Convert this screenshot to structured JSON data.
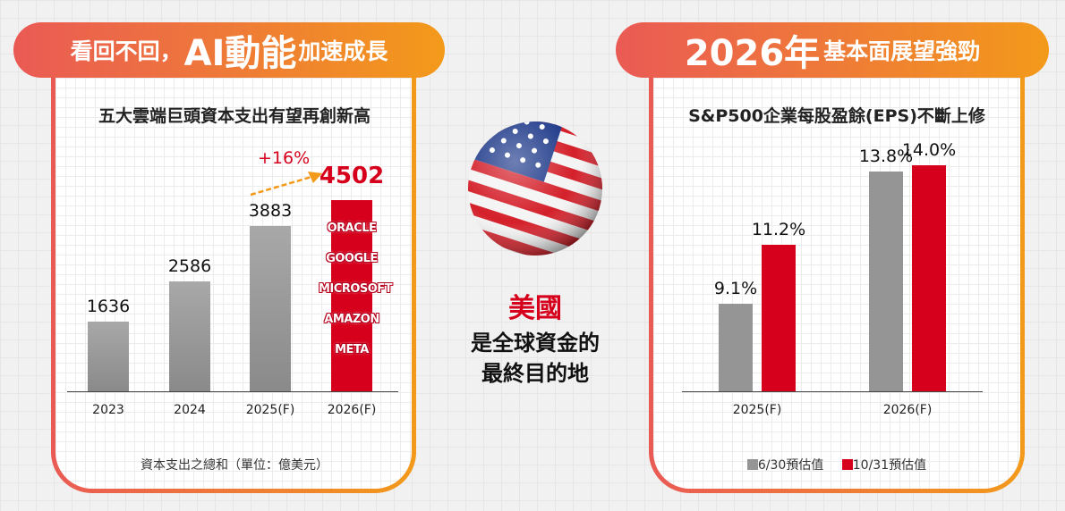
{
  "left": {
    "title_pre": "看回不回，",
    "title_big": "AI動能",
    "title_post": "加速成長",
    "subtitle": "五大雲端巨頭資本支出有望再創新高",
    "growth_label": "+16%",
    "footnote": "資本支出之總和（單位：億美元）",
    "companies": [
      "ORACLE",
      "GOOGLE",
      "MICROSOFT",
      "AMAZON",
      "META"
    ]
  },
  "center": {
    "line1": "美國",
    "line2": "是全球資金的",
    "line3": "最終目的地"
  },
  "right": {
    "title_big": "2026年",
    "title_post": "基本面展望強勁",
    "subtitle": "S&P500企業每股盈餘(EPS)不斷上修",
    "legend": [
      "6/30預估值",
      "10/31預估值"
    ]
  },
  "colors": {
    "gray": "#959595",
    "red": "#d6001c",
    "orange": "#f39a1a",
    "coral": "#ea5a55"
  },
  "chart_data": [
    {
      "type": "bar",
      "title": "五大雲端巨頭資本支出有望再創新高",
      "categories": [
        "2023",
        "2024",
        "2025(F)",
        "2026(F)"
      ],
      "values": [
        1636,
        2586,
        3883,
        4502
      ],
      "value_labels": [
        "1636",
        "2586",
        "3883",
        "4502"
      ],
      "ylabel": "資本支出之總和（單位：億美元）",
      "ylim": [
        0,
        4700
      ],
      "highlight": "2026(F)"
    },
    {
      "type": "bar",
      "title": "S&P500企業每股盈餘(EPS)不斷上修",
      "categories": [
        "2025(F)",
        "2026(F)"
      ],
      "series": [
        {
          "name": "6/30預估值",
          "values": [
            9.1,
            13.8
          ],
          "labels": [
            "9.1%",
            "13.8%"
          ]
        },
        {
          "name": "10/31預估值",
          "values": [
            11.2,
            14.0
          ],
          "labels": [
            "11.2%",
            "14.0%"
          ]
        }
      ],
      "ylim": [
        6,
        15
      ],
      "legend": "bottom"
    }
  ]
}
